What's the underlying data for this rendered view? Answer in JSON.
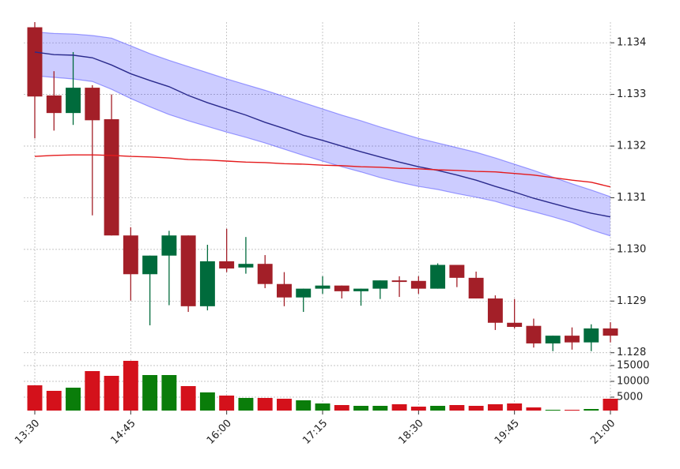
{
  "chart_data": {
    "type": "candlestick",
    "categories": [
      "13:30",
      null,
      null,
      null,
      null,
      "14:45",
      null,
      null,
      null,
      null,
      "16:00",
      null,
      null,
      null,
      null,
      "17:15",
      null,
      null,
      null,
      null,
      "18:30",
      null,
      null,
      null,
      null,
      "19:45",
      null,
      null,
      null,
      null,
      "21:00"
    ],
    "open": [
      1.1343,
      1.13298,
      1.13264,
      1.13313,
      1.13252,
      1.13027,
      1.12952,
      1.12988,
      1.13027,
      1.1289,
      1.12977,
      1.12965,
      1.12972,
      1.12933,
      1.12907,
      1.12924,
      1.1293,
      1.12919,
      1.12924,
      1.1294,
      1.12939,
      1.12924,
      1.1297,
      1.12945,
      1.12905,
      1.12858,
      1.12852,
      1.12818,
      1.12833,
      1.1282,
      1.12847
    ],
    "high": [
      1.1344,
      1.13345,
      1.13382,
      1.13318,
      1.133,
      1.13043,
      1.12988,
      1.13036,
      1.13027,
      1.13009,
      1.1304,
      1.13024,
      1.12989,
      1.12956,
      1.12924,
      1.12948,
      1.1293,
      1.12924,
      1.1294,
      1.12948,
      1.12948,
      1.12973,
      1.1297,
      1.12957,
      1.12911,
      1.12904,
      1.12866,
      1.12833,
      1.12849,
      1.12855,
      1.12859
    ],
    "low": [
      1.13215,
      1.1323,
      1.13241,
      1.13066,
      1.13027,
      1.12901,
      1.12853,
      1.12892,
      1.12879,
      1.12882,
      1.12956,
      1.12953,
      1.12925,
      1.1289,
      1.12879,
      1.12914,
      1.12905,
      1.12891,
      1.12904,
      1.12908,
      1.12914,
      1.12924,
      1.12927,
      1.12905,
      1.12844,
      1.12847,
      1.1281,
      1.12803,
      1.12806,
      1.12803,
      1.1282
    ],
    "close": [
      1.13296,
      1.13264,
      1.13313,
      1.1325,
      1.13027,
      1.12952,
      1.12988,
      1.13027,
      1.1289,
      1.12977,
      1.12963,
      1.12972,
      1.12933,
      1.12907,
      1.12924,
      1.1293,
      1.12919,
      1.12924,
      1.1294,
      1.12937,
      1.12924,
      1.1297,
      1.12945,
      1.12905,
      1.12858,
      1.1285,
      1.12818,
      1.12833,
      1.1282,
      1.12847,
      1.12833
    ],
    "up_color": "#006b3c",
    "down_color": "#a31f28",
    "band": {
      "color": "#0000ff",
      "upper": [
        1.13421,
        1.13418,
        1.13417,
        1.13414,
        1.13409,
        1.13394,
        1.13379,
        1.13366,
        1.13354,
        1.13342,
        1.1333,
        1.13319,
        1.13308,
        1.13296,
        1.13284,
        1.13272,
        1.1326,
        1.13249,
        1.13237,
        1.13226,
        1.13215,
        1.13206,
        1.13197,
        1.13188,
        1.13177,
        1.13165,
        1.13153,
        1.1314,
        1.13127,
        1.13115,
        1.13102
      ],
      "lower": [
        1.13336,
        1.13333,
        1.1333,
        1.13325,
        1.1331,
        1.13292,
        1.13276,
        1.13261,
        1.13249,
        1.13238,
        1.13227,
        1.13217,
        1.13206,
        1.13194,
        1.13182,
        1.13171,
        1.1316,
        1.1315,
        1.13139,
        1.1313,
        1.13122,
        1.13116,
        1.13108,
        1.13101,
        1.13093,
        1.13082,
        1.13073,
        1.13063,
        1.13052,
        1.13038,
        1.13026
      ]
    },
    "lines": [
      {
        "color": "#2a2a8c",
        "values": [
          1.13382,
          1.13377,
          1.13376,
          1.13371,
          1.13357,
          1.1334,
          1.13327,
          1.13315,
          1.13298,
          1.13284,
          1.13272,
          1.1326,
          1.13246,
          1.13234,
          1.13221,
          1.13211,
          1.132,
          1.13189,
          1.13179,
          1.13169,
          1.1316,
          1.13153,
          1.13144,
          1.13134,
          1.13122,
          1.13111,
          1.13099,
          1.13089,
          1.13079,
          1.1307,
          1.13063
        ]
      },
      {
        "color": "#e41a1c",
        "values": [
          1.1318,
          1.13182,
          1.13183,
          1.13183,
          1.13182,
          1.1318,
          1.13179,
          1.13177,
          1.13174,
          1.13173,
          1.13171,
          1.13169,
          1.13168,
          1.13166,
          1.13165,
          1.13163,
          1.13162,
          1.1316,
          1.13159,
          1.13157,
          1.13156,
          1.13154,
          1.13153,
          1.13151,
          1.1315,
          1.13147,
          1.13144,
          1.13139,
          1.13134,
          1.1313,
          1.13121
        ]
      }
    ],
    "ylim": [
      1.12795,
      1.1344
    ],
    "yticks": [
      1.128,
      1.129,
      {
        "value": 1.13,
        "label": "1.130"
      },
      1.131,
      1.132,
      1.133,
      1.134
    ],
    "volume": [
      8750,
      7000,
      8000,
      13250,
      11750,
      16500,
      12000,
      12000,
      8500,
      6500,
      5500,
      4750,
      4750,
      4500,
      4000,
      3000,
      2500,
      2250,
      2250,
      2750,
      2000,
      2250,
      2500,
      2250,
      2750,
      3000,
      1750,
      1000,
      1000,
      1250,
      4500
    ],
    "volume_up_color": "#0a7d0a",
    "volume_down_color": "#d4111b",
    "volume_ylim": [
      750,
      17000
    ],
    "volume_yticks": [
      5000,
      10000,
      15000
    ],
    "grid": true
  }
}
